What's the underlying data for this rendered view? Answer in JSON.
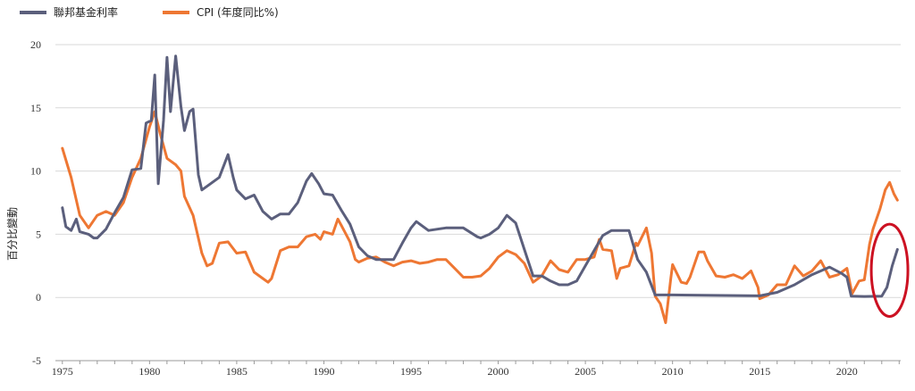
{
  "chart_data": {
    "type": "line",
    "title": "",
    "xlabel": "",
    "ylabel": "百分比變動",
    "xlim": [
      1974.6,
      2023.6
    ],
    "ylim": [
      -5,
      20
    ],
    "x_ticks": [
      1975,
      1980,
      1985,
      1990,
      1995,
      2000,
      2005,
      2010,
      2015,
      2020
    ],
    "y_ticks": [
      -5,
      0,
      5,
      10,
      15,
      20
    ],
    "grid": "horizontal",
    "legend": "top-left",
    "annotations": [
      {
        "type": "ellipse",
        "color": "#cc1122",
        "x_range": [
          2021.4,
          2023.5
        ],
        "y_range": [
          -1.5,
          5.8
        ]
      }
    ],
    "series": [
      {
        "name": "聯邦基金利率",
        "color": "#5b5f7c",
        "points": [
          [
            1975.0,
            7.1
          ],
          [
            1975.2,
            5.6
          ],
          [
            1975.5,
            5.3
          ],
          [
            1975.8,
            6.2
          ],
          [
            1976.0,
            5.2
          ],
          [
            1976.5,
            5.0
          ],
          [
            1976.8,
            4.7
          ],
          [
            1977.0,
            4.7
          ],
          [
            1977.5,
            5.4
          ],
          [
            1978.0,
            6.7
          ],
          [
            1978.5,
            7.9
          ],
          [
            1979.0,
            10.1
          ],
          [
            1979.5,
            10.2
          ],
          [
            1979.8,
            13.8
          ],
          [
            1980.1,
            14.0
          ],
          [
            1980.3,
            17.6
          ],
          [
            1980.5,
            9.0
          ],
          [
            1980.8,
            14.0
          ],
          [
            1981.0,
            19.0
          ],
          [
            1981.2,
            14.7
          ],
          [
            1981.5,
            19.1
          ],
          [
            1981.8,
            15.1
          ],
          [
            1982.0,
            13.2
          ],
          [
            1982.3,
            14.7
          ],
          [
            1982.5,
            14.9
          ],
          [
            1982.8,
            9.7
          ],
          [
            1983.0,
            8.5
          ],
          [
            1983.5,
            9.0
          ],
          [
            1984.0,
            9.5
          ],
          [
            1984.5,
            11.3
          ],
          [
            1984.8,
            9.5
          ],
          [
            1985.0,
            8.5
          ],
          [
            1985.5,
            7.8
          ],
          [
            1986.0,
            8.1
          ],
          [
            1986.5,
            6.8
          ],
          [
            1987.0,
            6.2
          ],
          [
            1987.5,
            6.6
          ],
          [
            1988.0,
            6.6
          ],
          [
            1988.5,
            7.5
          ],
          [
            1989.0,
            9.2
          ],
          [
            1989.3,
            9.8
          ],
          [
            1989.7,
            9.0
          ],
          [
            1990.0,
            8.2
          ],
          [
            1990.5,
            8.1
          ],
          [
            1991.0,
            6.9
          ],
          [
            1991.5,
            5.8
          ],
          [
            1992.0,
            4.0
          ],
          [
            1992.5,
            3.3
          ],
          [
            1993.0,
            3.0
          ],
          [
            1994.0,
            3.0
          ],
          [
            1994.5,
            4.3
          ],
          [
            1995.0,
            5.5
          ],
          [
            1995.3,
            6.0
          ],
          [
            1996.0,
            5.3
          ],
          [
            1997.0,
            5.5
          ],
          [
            1998.0,
            5.5
          ],
          [
            1998.8,
            4.8
          ],
          [
            1999.0,
            4.7
          ],
          [
            1999.5,
            5.0
          ],
          [
            2000.0,
            5.5
          ],
          [
            2000.5,
            6.5
          ],
          [
            2001.0,
            5.9
          ],
          [
            2001.5,
            3.8
          ],
          [
            2002.0,
            1.7
          ],
          [
            2002.5,
            1.7
          ],
          [
            2003.0,
            1.3
          ],
          [
            2003.5,
            1.0
          ],
          [
            2004.0,
            1.0
          ],
          [
            2004.5,
            1.3
          ],
          [
            2005.0,
            2.5
          ],
          [
            2006.0,
            4.9
          ],
          [
            2006.5,
            5.3
          ],
          [
            2007.5,
            5.3
          ],
          [
            2008.0,
            3.0
          ],
          [
            2008.5,
            2.0
          ],
          [
            2009.0,
            0.2
          ],
          [
            2010.0,
            0.2
          ],
          [
            2015.0,
            0.13
          ],
          [
            2016.0,
            0.4
          ],
          [
            2017.0,
            1.0
          ],
          [
            2018.0,
            1.8
          ],
          [
            2019.0,
            2.4
          ],
          [
            2019.7,
            1.9
          ],
          [
            2020.0,
            1.6
          ],
          [
            2020.25,
            0.1
          ],
          [
            2021.0,
            0.08
          ],
          [
            2022.0,
            0.1
          ],
          [
            2022.3,
            0.8
          ],
          [
            2022.6,
            2.5
          ],
          [
            2022.9,
            3.8
          ]
        ]
      },
      {
        "name": "CPI (年度同比%)",
        "color": "#ee7733",
        "points": [
          [
            1975.0,
            11.8
          ],
          [
            1975.5,
            9.5
          ],
          [
            1976.0,
            6.5
          ],
          [
            1976.5,
            5.5
          ],
          [
            1977.0,
            6.5
          ],
          [
            1977.5,
            6.8
          ],
          [
            1978.0,
            6.5
          ],
          [
            1978.5,
            7.5
          ],
          [
            1979.0,
            9.5
          ],
          [
            1979.5,
            11.0
          ],
          [
            1980.0,
            13.5
          ],
          [
            1980.3,
            14.7
          ],
          [
            1980.6,
            13.0
          ],
          [
            1981.0,
            11.0
          ],
          [
            1981.5,
            10.5
          ],
          [
            1981.8,
            10.0
          ],
          [
            1982.0,
            8.0
          ],
          [
            1982.5,
            6.5
          ],
          [
            1983.0,
            3.5
          ],
          [
            1983.3,
            2.5
          ],
          [
            1983.6,
            2.7
          ],
          [
            1984.0,
            4.3
          ],
          [
            1984.5,
            4.4
          ],
          [
            1985.0,
            3.5
          ],
          [
            1985.5,
            3.6
          ],
          [
            1986.0,
            2.0
          ],
          [
            1986.5,
            1.5
          ],
          [
            1986.8,
            1.2
          ],
          [
            1987.0,
            1.5
          ],
          [
            1987.5,
            3.7
          ],
          [
            1988.0,
            4.0
          ],
          [
            1988.5,
            4.0
          ],
          [
            1989.0,
            4.8
          ],
          [
            1989.5,
            5.0
          ],
          [
            1989.8,
            4.6
          ],
          [
            1990.0,
            5.2
          ],
          [
            1990.5,
            5.0
          ],
          [
            1990.8,
            6.2
          ],
          [
            1991.0,
            5.7
          ],
          [
            1991.5,
            4.4
          ],
          [
            1991.8,
            3.0
          ],
          [
            1992.0,
            2.8
          ],
          [
            1992.5,
            3.1
          ],
          [
            1993.0,
            3.2
          ],
          [
            1993.5,
            2.8
          ],
          [
            1994.0,
            2.5
          ],
          [
            1994.5,
            2.8
          ],
          [
            1995.0,
            2.9
          ],
          [
            1995.5,
            2.7
          ],
          [
            1996.0,
            2.8
          ],
          [
            1996.5,
            3.0
          ],
          [
            1997.0,
            3.0
          ],
          [
            1997.5,
            2.3
          ],
          [
            1998.0,
            1.6
          ],
          [
            1998.5,
            1.6
          ],
          [
            1999.0,
            1.7
          ],
          [
            1999.5,
            2.3
          ],
          [
            2000.0,
            3.2
          ],
          [
            2000.5,
            3.7
          ],
          [
            2001.0,
            3.4
          ],
          [
            2001.5,
            2.7
          ],
          [
            2002.0,
            1.2
          ],
          [
            2002.5,
            1.7
          ],
          [
            2003.0,
            2.9
          ],
          [
            2003.5,
            2.2
          ],
          [
            2004.0,
            2.0
          ],
          [
            2004.5,
            3.0
          ],
          [
            2005.0,
            3.0
          ],
          [
            2005.5,
            3.2
          ],
          [
            2005.8,
            4.6
          ],
          [
            2006.0,
            3.8
          ],
          [
            2006.5,
            3.7
          ],
          [
            2006.8,
            1.5
          ],
          [
            2007.0,
            2.3
          ],
          [
            2007.5,
            2.5
          ],
          [
            2007.9,
            4.3
          ],
          [
            2008.0,
            4.1
          ],
          [
            2008.5,
            5.5
          ],
          [
            2008.8,
            3.5
          ],
          [
            2009.0,
            0.1
          ],
          [
            2009.3,
            -0.5
          ],
          [
            2009.6,
            -2.0
          ],
          [
            2009.9,
            1.5
          ],
          [
            2010.0,
            2.6
          ],
          [
            2010.5,
            1.2
          ],
          [
            2010.8,
            1.1
          ],
          [
            2011.0,
            1.6
          ],
          [
            2011.5,
            3.6
          ],
          [
            2011.8,
            3.6
          ],
          [
            2012.0,
            2.9
          ],
          [
            2012.5,
            1.7
          ],
          [
            2013.0,
            1.6
          ],
          [
            2013.5,
            1.8
          ],
          [
            2014.0,
            1.5
          ],
          [
            2014.5,
            2.1
          ],
          [
            2014.9,
            0.8
          ],
          [
            2015.0,
            -0.1
          ],
          [
            2015.5,
            0.2
          ],
          [
            2016.0,
            1.0
          ],
          [
            2016.5,
            1.0
          ],
          [
            2017.0,
            2.5
          ],
          [
            2017.5,
            1.7
          ],
          [
            2018.0,
            2.1
          ],
          [
            2018.5,
            2.9
          ],
          [
            2019.0,
            1.6
          ],
          [
            2019.5,
            1.8
          ],
          [
            2020.0,
            2.3
          ],
          [
            2020.3,
            0.3
          ],
          [
            2020.7,
            1.3
          ],
          [
            2021.0,
            1.4
          ],
          [
            2021.3,
            4.2
          ],
          [
            2021.5,
            5.4
          ],
          [
            2021.9,
            7.0
          ],
          [
            2022.2,
            8.5
          ],
          [
            2022.45,
            9.1
          ],
          [
            2022.7,
            8.2
          ],
          [
            2022.9,
            7.7
          ]
        ]
      }
    ]
  }
}
